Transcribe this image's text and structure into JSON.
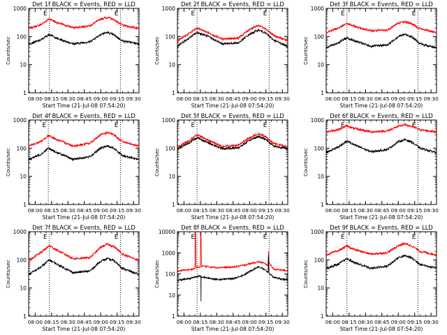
{
  "figure": {
    "background": "#ffffff",
    "colors": {
      "events": "#000000",
      "lld": "#ff0000",
      "axis": "#000000"
    },
    "ylabel": "Counts/sec",
    "xlabel": "Start Time (21-Jul-08 07:54:20)",
    "corner_marks": [
      "E",
      "E"
    ]
  },
  "chart_data": [
    {
      "type": "line",
      "title": "Det 1f BLACK = Events, RED = LLD",
      "x_tick_labels": [
        "08:00",
        "08:15",
        "08:30",
        "08:45",
        "09:00",
        "09:15",
        "09:30"
      ],
      "x_ticks_minutes": [
        0,
        15,
        30,
        45,
        60,
        75,
        90
      ],
      "xlim_minutes": [
        -6,
        95
      ],
      "y_tick_labels": [
        "1",
        "10",
        "100",
        "1000"
      ],
      "ylim": [
        1,
        1000
      ],
      "yscale": "log",
      "vlines_minutes": [
        13,
        78
      ],
      "series": [
        {
          "color": "#ff0000",
          "x": [
            -6,
            5,
            13,
            20,
            35,
            50,
            60,
            66,
            72,
            80,
            95
          ],
          "values": [
            195,
            260,
            430,
            310,
            205,
            240,
            420,
            480,
            400,
            250,
            195
          ]
        },
        {
          "color": "#000000",
          "x": [
            -6,
            5,
            13,
            20,
            35,
            50,
            60,
            66,
            72,
            80,
            95
          ],
          "values": [
            55,
            75,
            120,
            85,
            55,
            65,
            120,
            140,
            115,
            70,
            55
          ]
        }
      ]
    },
    {
      "type": "line",
      "title": "Det 2f BLACK = Events, RED = LLD",
      "x_tick_labels": [
        "08:00",
        "08:15",
        "08:30",
        "08:45",
        "09:00",
        "09:15",
        "09:30"
      ],
      "x_ticks_minutes": [
        0,
        15,
        30,
        45,
        60,
        75,
        90
      ],
      "xlim_minutes": [
        -6,
        95
      ],
      "y_tick_labels": [
        "1",
        "10",
        "100",
        "1000"
      ],
      "ylim": [
        1,
        1000
      ],
      "yscale": "log",
      "vlines_minutes": [
        12,
        78
      ],
      "series": [
        {
          "color": "#ff0000",
          "x": [
            -6,
            5,
            12,
            20,
            35,
            50,
            60,
            68,
            74,
            82,
            95
          ],
          "values": [
            70,
            130,
            200,
            150,
            80,
            90,
            180,
            250,
            200,
            110,
            70
          ]
        },
        {
          "color": "#000000",
          "x": [
            -6,
            5,
            12,
            20,
            35,
            50,
            60,
            68,
            74,
            82,
            95
          ],
          "values": [
            45,
            90,
            140,
            110,
            55,
            60,
            120,
            170,
            140,
            75,
            45
          ]
        }
      ]
    },
    {
      "type": "line",
      "title": "Det 3f BLACK = Events, RED = LLD",
      "x_tick_labels": [
        "08:00",
        "08:15",
        "08:30",
        "08:45",
        "09:00",
        "09:15",
        "09:30"
      ],
      "x_ticks_minutes": [
        0,
        15,
        30,
        45,
        60,
        75,
        90
      ],
      "xlim_minutes": [
        -6,
        95
      ],
      "y_tick_labels": [
        "1",
        "10",
        "100",
        "1000"
      ],
      "ylim": [
        1,
        1000
      ],
      "yscale": "log",
      "vlines_minutes": [
        13,
        78
      ],
      "series": [
        {
          "color": "#ff0000",
          "x": [
            -6,
            5,
            13,
            20,
            35,
            50,
            60,
            66,
            72,
            80,
            95
          ],
          "values": [
            140,
            200,
            290,
            230,
            160,
            170,
            300,
            340,
            290,
            190,
            140
          ]
        },
        {
          "color": "#000000",
          "x": [
            -6,
            5,
            13,
            20,
            35,
            50,
            60,
            66,
            72,
            80,
            95
          ],
          "values": [
            40,
            60,
            90,
            70,
            45,
            50,
            100,
            120,
            100,
            55,
            40
          ]
        }
      ]
    },
    {
      "type": "line",
      "title": "Det 4f BLACK = Events, RED = LLD",
      "x_tick_labels": [
        "08:00",
        "08:15",
        "08:30",
        "08:45",
        "09:00",
        "09:15",
        "09:30"
      ],
      "x_ticks_minutes": [
        0,
        15,
        30,
        45,
        60,
        75,
        90
      ],
      "xlim_minutes": [
        -6,
        95
      ],
      "y_tick_labels": [
        "1",
        "10",
        "100",
        "1000"
      ],
      "ylim": [
        1,
        1000
      ],
      "yscale": "log",
      "vlines_minutes": [
        12,
        78
      ],
      "series": [
        {
          "color": "#ff0000",
          "x": [
            -6,
            5,
            12,
            20,
            35,
            50,
            60,
            66,
            72,
            80,
            95
          ],
          "values": [
            120,
            170,
            280,
            200,
            120,
            150,
            300,
            360,
            300,
            170,
            120
          ]
        },
        {
          "color": "#000000",
          "x": [
            -6,
            5,
            12,
            20,
            35,
            50,
            60,
            66,
            72,
            80,
            95
          ],
          "values": [
            40,
            60,
            100,
            70,
            40,
            50,
            100,
            120,
            100,
            55,
            40
          ]
        }
      ]
    },
    {
      "type": "line",
      "title": "Det 5f BLACK = Events, RED = LLD",
      "x_tick_labels": [
        "08:00",
        "08:15",
        "08:30",
        "08:45",
        "09:00",
        "09:15",
        "09:30"
      ],
      "x_ticks_minutes": [
        0,
        15,
        30,
        45,
        60,
        75,
        90
      ],
      "xlim_minutes": [
        -6,
        95
      ],
      "y_tick_labels": [
        "1",
        "10",
        "100",
        "1000"
      ],
      "ylim": [
        1,
        1000
      ],
      "yscale": "log",
      "vlines_minutes": [
        12,
        78
      ],
      "series": [
        {
          "color": "#ff0000",
          "x": [
            -6,
            4,
            12,
            20,
            35,
            50,
            62,
            68,
            74,
            82,
            95
          ],
          "values": [
            110,
            180,
            300,
            210,
            115,
            130,
            260,
            330,
            270,
            150,
            110
          ]
        },
        {
          "color": "#000000",
          "x": [
            -6,
            4,
            12,
            20,
            35,
            50,
            62,
            68,
            74,
            82,
            95
          ],
          "values": [
            95,
            150,
            240,
            170,
            95,
            105,
            210,
            260,
            220,
            120,
            95
          ]
        }
      ]
    },
    {
      "type": "line",
      "title": "Det 6f BLACK = Events, RED = LLD",
      "x_tick_labels": [
        "08:00",
        "08:15",
        "08:30",
        "08:45",
        "09:00",
        "09:15",
        "09:30"
      ],
      "x_ticks_minutes": [
        0,
        15,
        30,
        45,
        60,
        75,
        90
      ],
      "xlim_minutes": [
        -6,
        95
      ],
      "y_tick_labels": [
        "1",
        "10",
        "100",
        "1000"
      ],
      "ylim": [
        1,
        1000
      ],
      "yscale": "log",
      "vlines_minutes": [
        13,
        78
      ],
      "series": [
        {
          "color": "#ff0000",
          "x": [
            -6,
            5,
            13,
            20,
            35,
            50,
            60,
            66,
            72,
            80,
            95
          ],
          "values": [
            380,
            460,
            620,
            500,
            380,
            410,
            600,
            680,
            600,
            450,
            380
          ]
        },
        {
          "color": "#000000",
          "x": [
            -6,
            5,
            13,
            20,
            35,
            50,
            60,
            66,
            72,
            80,
            95
          ],
          "values": [
            70,
            110,
            180,
            130,
            75,
            90,
            170,
            200,
            170,
            100,
            70
          ]
        }
      ]
    },
    {
      "type": "line",
      "title": "Det 7f BLACK = Events, RED = LLD",
      "x_tick_labels": [
        "08:00",
        "08:15",
        "08:30",
        "08:45",
        "09:00",
        "09:15",
        "09:30"
      ],
      "x_ticks_minutes": [
        0,
        15,
        30,
        45,
        60,
        75,
        90
      ],
      "xlim_minutes": [
        -6,
        95
      ],
      "y_tick_labels": [
        "1",
        "10",
        "100",
        "1000"
      ],
      "ylim": [
        1,
        1000
      ],
      "yscale": "log",
      "vlines_minutes": [
        13,
        78
      ],
      "series": [
        {
          "color": "#ff0000",
          "x": [
            -6,
            5,
            13,
            20,
            35,
            50,
            60,
            66,
            72,
            80,
            95
          ],
          "values": [
            95,
            180,
            320,
            220,
            110,
            120,
            280,
            360,
            300,
            160,
            95
          ]
        },
        {
          "color": "#000000",
          "x": [
            -6,
            5,
            13,
            20,
            35,
            50,
            60,
            66,
            72,
            80,
            95
          ],
          "values": [
            30,
            55,
            100,
            70,
            35,
            40,
            90,
            110,
            95,
            50,
            30
          ]
        }
      ]
    },
    {
      "type": "line",
      "title": "Det 8f BLACK = Events, RED = LLD",
      "x_tick_labels": [
        "08:00",
        "08:15",
        "08:30",
        "08:45",
        "09:00",
        "09:15",
        "09:30"
      ],
      "x_ticks_minutes": [
        0,
        15,
        30,
        45,
        60,
        75,
        90
      ],
      "xlim_minutes": [
        -6,
        95
      ],
      "y_tick_labels": [
        "1",
        "10",
        "100",
        "1000",
        "10000"
      ],
      "ylim": [
        1,
        10000
      ],
      "yscale": "log",
      "vlines_minutes": [
        12,
        78
      ],
      "series": [
        {
          "color": "#ff0000",
          "x": [
            -6,
            5,
            10,
            10.3,
            10.6,
            11,
            15,
            15.3,
            15.6,
            16,
            30,
            45,
            55,
            62,
            68,
            72,
            77,
            77.4,
            77.8,
            82,
            95
          ],
          "values": [
            140,
            160,
            180,
            10000,
            10000,
            200,
            210,
            10000,
            10000,
            240,
            200,
            210,
            260,
            320,
            380,
            340,
            260,
            1200,
            350,
            170,
            140
          ]
        },
        {
          "color": "#000000",
          "x": [
            -6,
            5,
            12,
            15.5,
            15.6,
            15.7,
            16,
            30,
            45,
            55,
            62,
            68,
            72,
            77,
            77.4,
            77.8,
            82,
            95
          ],
          "values": [
            50,
            60,
            75,
            80,
            5,
            80,
            72,
            55,
            60,
            90,
            150,
            220,
            180,
            120,
            700,
            110,
            70,
            50
          ]
        }
      ]
    },
    {
      "type": "line",
      "title": "Det 9f BLACK = Events, RED = LLD",
      "x_tick_labels": [
        "08:00",
        "08:15",
        "08:30",
        "08:45",
        "09:00",
        "09:15",
        "09:30"
      ],
      "x_ticks_minutes": [
        0,
        15,
        30,
        45,
        60,
        75,
        90
      ],
      "xlim_minutes": [
        -6,
        95
      ],
      "y_tick_labels": [
        "1",
        "10",
        "100",
        "1000"
      ],
      "ylim": [
        1,
        1000
      ],
      "yscale": "log",
      "vlines_minutes": [
        13,
        78
      ],
      "series": [
        {
          "color": "#ff0000",
          "x": [
            -6,
            5,
            13,
            20,
            35,
            50,
            60,
            66,
            72,
            80,
            95
          ],
          "values": [
            150,
            210,
            310,
            230,
            160,
            180,
            320,
            380,
            320,
            200,
            150
          ]
        },
        {
          "color": "#000000",
          "x": [
            -6,
            5,
            13,
            20,
            35,
            50,
            60,
            66,
            72,
            80,
            95
          ],
          "values": [
            50,
            70,
            110,
            80,
            50,
            60,
            120,
            140,
            120,
            70,
            50
          ]
        }
      ]
    }
  ]
}
